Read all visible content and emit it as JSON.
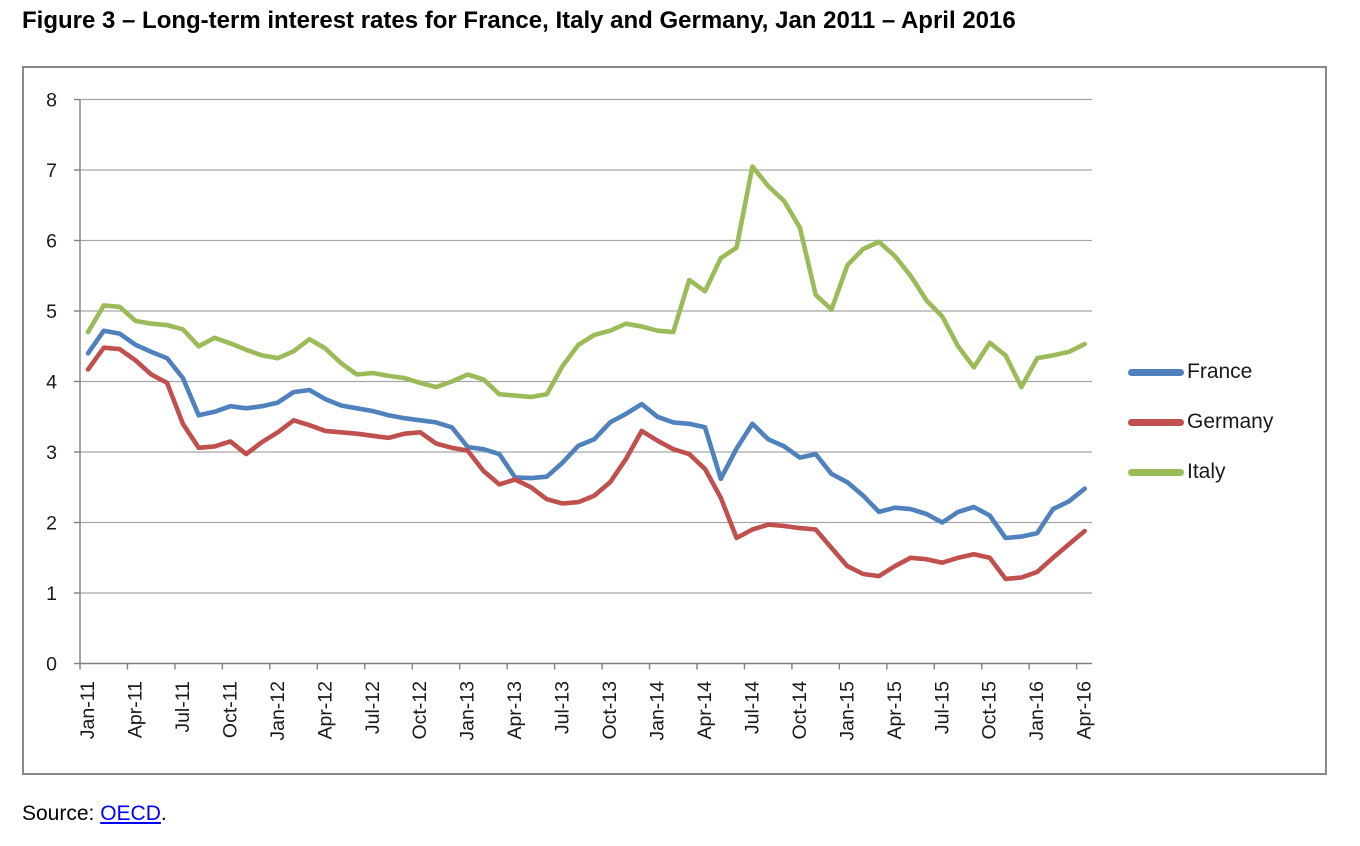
{
  "title": "Figure 3 – Long-term interest rates for France, Italy and Germany, Jan 2011 – April 2016",
  "source": {
    "prefix": "Source: ",
    "link_text": "OECD",
    "suffix": "."
  },
  "colors": {
    "france": "#4F81BD",
    "germany": "#C0504D",
    "italy": "#9BBB59",
    "gridline": "#A6A6A6",
    "axis": "#808080",
    "frame": "#898989",
    "link": "#0000FF"
  },
  "legend": {
    "position": "right",
    "entries": [
      "France",
      "Germany",
      "Italy"
    ]
  },
  "chart_data": {
    "type": "line",
    "ylim": [
      0,
      8
    ],
    "ytick_step": 1,
    "ytick_labels": [
      "0",
      "1",
      "2",
      "3",
      "4",
      "5",
      "6",
      "7",
      "8"
    ],
    "grid": true,
    "x_tick_labels": [
      "Jan-11",
      "Apr-11",
      "Jul-11",
      "Oct-11",
      "Jan-12",
      "Apr-12",
      "Jul-12",
      "Oct-12",
      "Jan-13",
      "Apr-13",
      "Jul-13",
      "Oct-13",
      "Jan-14",
      "Apr-14",
      "Jul-14",
      "Oct-14",
      "Jan-15",
      "Apr-15",
      "Jul-15",
      "Oct-15",
      "Jan-16",
      "Apr-16"
    ],
    "months": [
      "Jan-11",
      "Feb-11",
      "Mar-11",
      "Apr-11",
      "May-11",
      "Jun-11",
      "Jul-11",
      "Aug-11",
      "Sep-11",
      "Oct-11",
      "Nov-11",
      "Dec-11",
      "Jan-12",
      "Feb-12",
      "Mar-12",
      "Apr-12",
      "May-12",
      "Jun-12",
      "Jul-12",
      "Aug-12",
      "Sep-12",
      "Oct-12",
      "Nov-12",
      "Dec-12",
      "Jan-13",
      "Feb-13",
      "Mar-13",
      "Apr-13",
      "May-13",
      "Jun-13",
      "Jul-13",
      "Aug-13",
      "Sep-13",
      "Oct-13",
      "Nov-13",
      "Dec-13",
      "Jan-14",
      "Feb-14",
      "Mar-14",
      "Apr-14",
      "May-14",
      "Jun-14",
      "Jul-14",
      "Aug-14",
      "Sep-14",
      "Oct-14",
      "Nov-14",
      "Dec-14",
      "Jan-15",
      "Feb-15",
      "Mar-15",
      "Apr-15",
      "May-15",
      "Jun-15",
      "Jul-15",
      "Aug-15",
      "Sep-15",
      "Oct-15",
      "Nov-15",
      "Dec-15",
      "Jan-16",
      "Feb-16",
      "Mar-16",
      "Apr-16"
    ],
    "series": [
      {
        "name": "France",
        "color": "#4F81BD",
        "values": [
          4.4,
          4.72,
          4.68,
          4.52,
          4.42,
          4.33,
          4.05,
          3.52,
          3.57,
          3.65,
          3.62,
          3.65,
          3.7,
          3.85,
          3.88,
          3.75,
          3.66,
          3.62,
          3.58,
          3.52,
          3.48,
          3.45,
          3.42,
          3.35,
          3.07,
          3.04,
          2.97,
          2.64,
          2.63,
          2.65,
          2.85,
          3.09,
          3.18,
          3.42,
          3.54,
          3.68,
          3.5,
          3.42,
          3.4,
          3.35,
          2.62,
          3.05,
          3.4,
          3.18,
          3.08,
          2.92,
          2.97,
          2.69,
          2.57,
          2.38,
          2.15,
          2.21,
          2.19,
          2.12,
          2.0,
          2.15,
          2.22,
          2.1,
          1.78,
          1.8,
          1.85,
          2.19,
          2.3,
          2.48
        ]
      },
      {
        "name": "Germany",
        "color": "#C0504D",
        "values": [
          4.17,
          4.48,
          4.46,
          4.3,
          4.1,
          3.98,
          3.4,
          3.06,
          3.08,
          3.15,
          2.97,
          3.14,
          3.28,
          3.45,
          3.38,
          3.3,
          3.28,
          3.26,
          3.23,
          3.2,
          3.26,
          3.28,
          3.12,
          3.06,
          3.02,
          2.73,
          2.54,
          2.61,
          2.5,
          2.33,
          2.27,
          2.29,
          2.38,
          2.57,
          2.9,
          3.3,
          3.16,
          3.04,
          2.97,
          2.76,
          2.35,
          1.78,
          1.9,
          1.97,
          1.95,
          1.92,
          1.9,
          1.64,
          1.38,
          1.27,
          1.24,
          1.38,
          1.5,
          1.48,
          1.43,
          1.5,
          1.55,
          1.5,
          1.2,
          1.22,
          1.3,
          1.5,
          1.69,
          1.88
        ]
      },
      {
        "name": "Italy",
        "color": "#9BBB59",
        "values": [
          4.7,
          5.08,
          5.06,
          4.86,
          4.82,
          4.8,
          4.74,
          4.5,
          4.62,
          4.54,
          4.45,
          4.37,
          4.33,
          4.43,
          4.6,
          4.47,
          4.26,
          4.1,
          4.12,
          4.08,
          4.05,
          3.98,
          3.92,
          4.0,
          4.1,
          4.03,
          3.82,
          3.8,
          3.78,
          3.82,
          4.22,
          4.52,
          4.66,
          4.72,
          4.82,
          4.78,
          4.72,
          4.7,
          5.44,
          5.28,
          5.75,
          5.9,
          7.05,
          6.77,
          6.56,
          6.18,
          5.23,
          5.02,
          5.65,
          5.88,
          5.98,
          5.78,
          5.5,
          5.15,
          4.92,
          4.5,
          4.2,
          4.55,
          4.37,
          3.92,
          4.33,
          4.37,
          4.42,
          4.53
        ]
      }
    ]
  }
}
